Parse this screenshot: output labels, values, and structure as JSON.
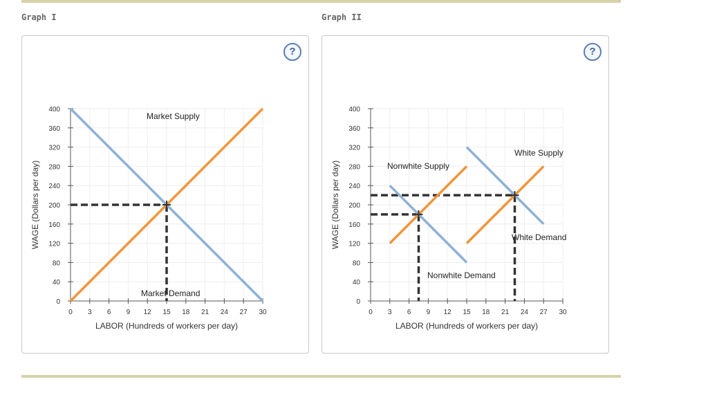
{
  "graph1": {
    "title": "Graph I",
    "help": "?"
  },
  "graph2": {
    "title": "Graph II",
    "help": "?"
  },
  "colors": {
    "supply": "#f0953a",
    "demand": "#8db1d6",
    "guide": "#333333",
    "grid": "#eeeeee",
    "axis": "#555555"
  },
  "chart_data": [
    {
      "type": "line",
      "xlabel": "LABOR (Hundreds of workers per day)",
      "ylabel": "WAGE (Dollars per day)",
      "xlim": [
        0,
        30
      ],
      "ylim": [
        0,
        400
      ],
      "x_ticks": [
        0,
        3,
        6,
        9,
        12,
        15,
        18,
        21,
        24,
        27,
        30
      ],
      "y_ticks": [
        0,
        40,
        80,
        120,
        160,
        200,
        240,
        280,
        320,
        360,
        400
      ],
      "series": [
        {
          "name": "Market Supply",
          "kind": "supply",
          "points": [
            [
              0,
              0
            ],
            [
              30,
              400
            ]
          ]
        },
        {
          "name": "Market Demand",
          "kind": "demand",
          "points": [
            [
              0,
              400
            ],
            [
              30,
              0
            ]
          ]
        }
      ],
      "equilibria": [
        [
          15,
          200
        ]
      ]
    },
    {
      "type": "line",
      "xlabel": "LABOR (Hundreds of workers per day)",
      "ylabel": "WAGE (Dollars per day)",
      "xlim": [
        0,
        30
      ],
      "ylim": [
        0,
        400
      ],
      "x_ticks": [
        0,
        3,
        6,
        9,
        12,
        15,
        18,
        21,
        24,
        27,
        30
      ],
      "y_ticks": [
        0,
        40,
        80,
        120,
        160,
        200,
        240,
        280,
        320,
        360,
        400
      ],
      "series": [
        {
          "name": "Nonwhite Supply",
          "kind": "supply",
          "points": [
            [
              3,
              120
            ],
            [
              15,
              280
            ]
          ]
        },
        {
          "name": "Nonwhite Demand",
          "kind": "demand",
          "points": [
            [
              3,
              240
            ],
            [
              15,
              80
            ]
          ]
        },
        {
          "name": "White Supply",
          "kind": "supply",
          "points": [
            [
              15,
              120
            ],
            [
              27,
              280
            ]
          ]
        },
        {
          "name": "White Demand",
          "kind": "demand",
          "points": [
            [
              15,
              320
            ],
            [
              27,
              160
            ]
          ]
        }
      ],
      "equilibria": [
        [
          7.5,
          180
        ],
        [
          22.5,
          220
        ]
      ]
    }
  ]
}
